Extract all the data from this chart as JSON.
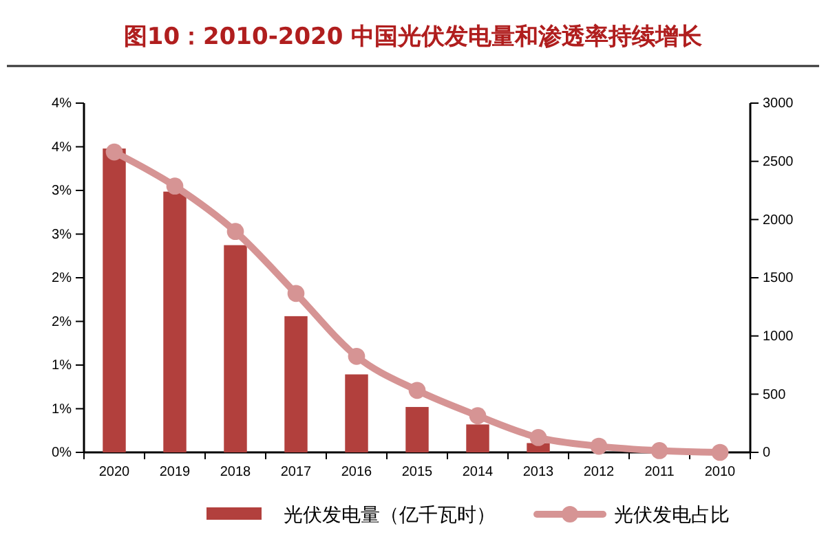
{
  "chart_data": {
    "type": "bar",
    "title": "图10：2010-2020 中国光伏发电量和渗透率持续增长",
    "categories": [
      "2020",
      "2019",
      "2018",
      "2017",
      "2016",
      "2015",
      "2014",
      "2013",
      "2012",
      "2011",
      "2010"
    ],
    "series": [
      {
        "name": "光伏发电量（亿千瓦时）",
        "axis": "y2",
        "color": "#b2403d",
        "values": [
          2610,
          2240,
          1780,
          1170,
          670,
          390,
          240,
          80,
          null,
          10,
          0
        ]
      },
      {
        "name": "光伏发电占比",
        "type": "line",
        "axis": "y",
        "color": "#d69494",
        "marker": "circle",
        "values": [
          3.44,
          3.05,
          2.53,
          1.82,
          1.1,
          0.71,
          0.42,
          0.17,
          0.07,
          0.02,
          0
        ]
      }
    ],
    "ylim": [
      0,
      4
    ],
    "yticks": [
      {
        "value": 0,
        "label": "0%"
      },
      {
        "value": 0.5,
        "label": "1%"
      },
      {
        "value": 1,
        "label": "1%"
      },
      {
        "value": 1.5,
        "label": "2%"
      },
      {
        "value": 2,
        "label": "2%"
      },
      {
        "value": 2.5,
        "label": "3%"
      },
      {
        "value": 3,
        "label": "3%"
      },
      {
        "value": 3.5,
        "label": "4%"
      },
      {
        "value": 4,
        "label": "4%"
      }
    ],
    "y2lim": [
      0,
      3000
    ],
    "y2ticks": [
      0,
      500,
      1000,
      1500,
      2000,
      2500,
      3000
    ],
    "grid": false,
    "legend": "bottom"
  }
}
